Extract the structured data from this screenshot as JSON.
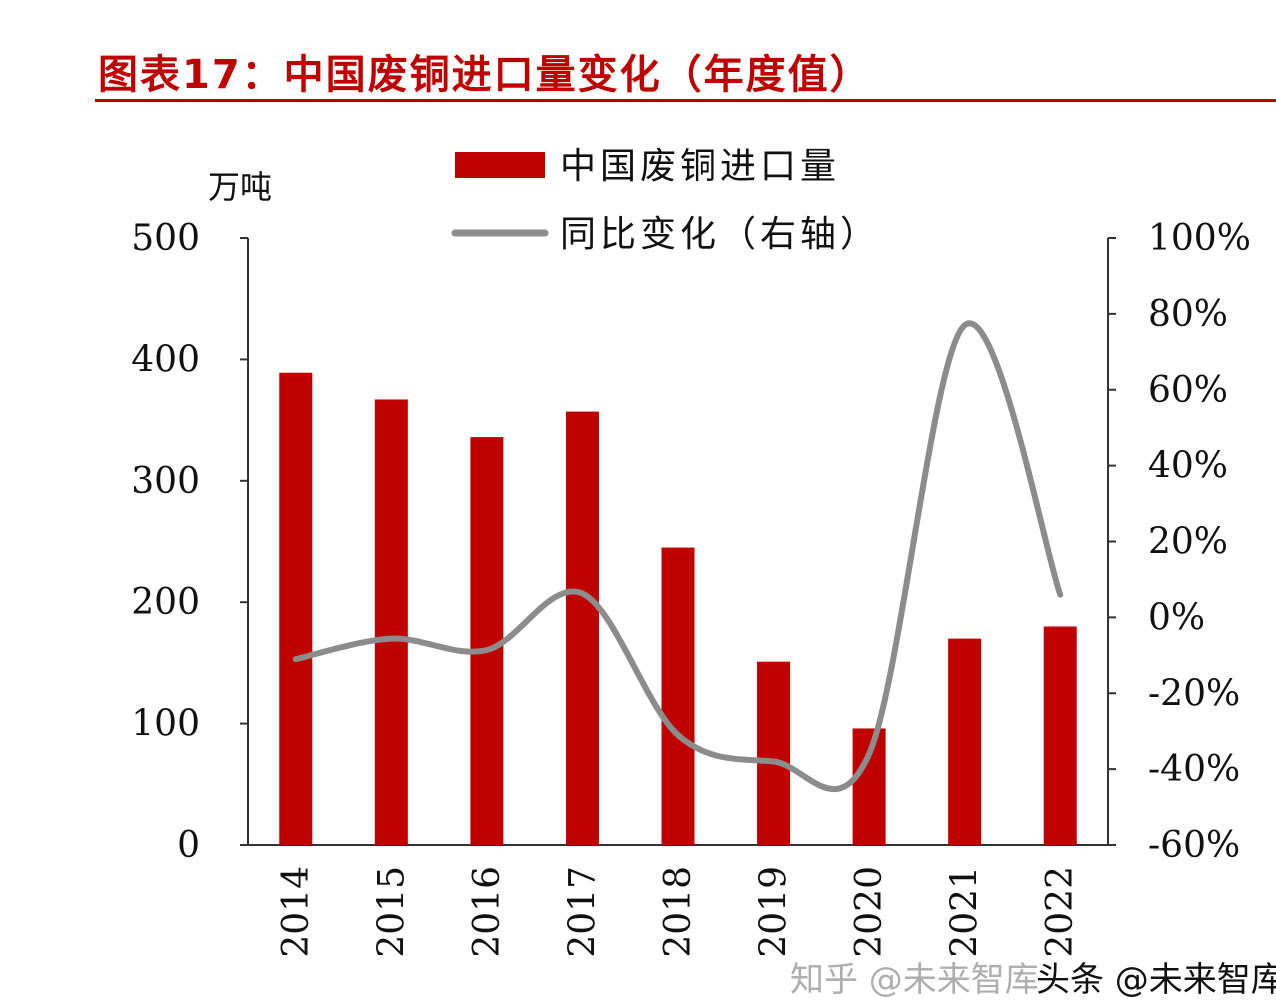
{
  "header": {
    "title": "图表17：中国废铜进口量变化（年度值）"
  },
  "watermarks": [
    "知乎 @未来智库",
    "头条 @未来智库"
  ],
  "chart_data": {
    "type": "bar",
    "title": "",
    "unit_label": "万吨",
    "categories": [
      "2014",
      "2015",
      "2016",
      "2017",
      "2018",
      "2019",
      "2020",
      "2021",
      "2022"
    ],
    "series": [
      {
        "name": "中国废铜进口量",
        "type": "bar",
        "axis": "left",
        "color": "#c00000",
        "values": [
          389,
          367,
          336,
          357,
          245,
          151,
          96,
          170,
          180
        ]
      },
      {
        "name": "同比变化（右轴）",
        "type": "line",
        "axis": "right",
        "color": "#8c8c8c",
        "values": [
          -11,
          -5.6,
          -8.6,
          6.3,
          -31,
          -38,
          -36,
          77,
          6
        ]
      }
    ],
    "ylim_left": [
      0,
      500
    ],
    "yticks_left": [
      "0",
      "100",
      "200",
      "300",
      "400",
      "500"
    ],
    "ylim_right": [
      -60,
      100
    ],
    "yticks_right": [
      "-60%",
      "-40%",
      "-20%",
      "0%",
      "20%",
      "40%",
      "60%",
      "80%",
      "100%"
    ],
    "legend": "top-center",
    "grid": false
  }
}
